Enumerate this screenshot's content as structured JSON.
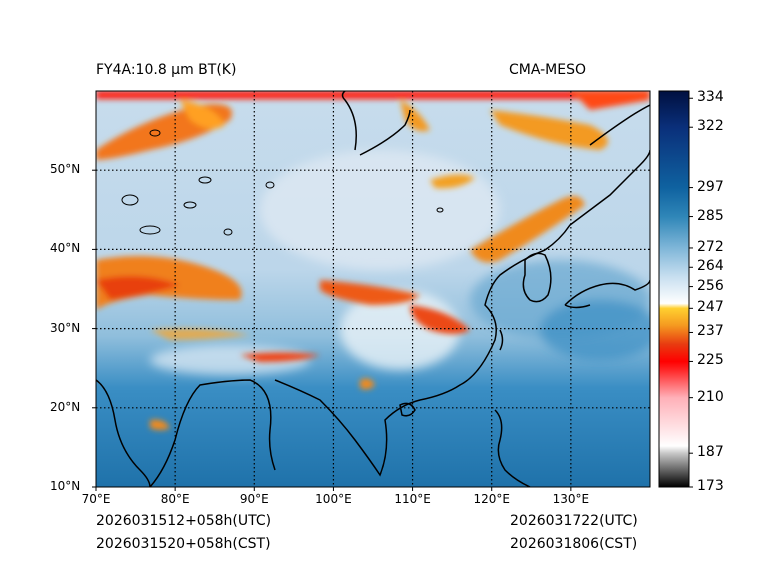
{
  "header": {
    "title_left": "FY4A:10.8 µm BT(K)",
    "title_right": "CMA-MESO"
  },
  "footer": {
    "init_utc": "2026031512+058h(UTC)",
    "init_cst": "2026031520+058h(CST)",
    "valid_utc": "2026031722(UTC)",
    "valid_cst": "2026031806(CST)"
  },
  "map": {
    "lon_range": [
      70,
      140
    ],
    "lat_range": [
      10,
      60
    ],
    "lon_ticks": [
      {
        "value": 70,
        "label": "70°E"
      },
      {
        "value": 80,
        "label": "80°E"
      },
      {
        "value": 90,
        "label": "90°E"
      },
      {
        "value": 100,
        "label": "100°E"
      },
      {
        "value": 110,
        "label": "110°E"
      },
      {
        "value": 120,
        "label": "120°E"
      },
      {
        "value": 130,
        "label": "130°E"
      }
    ],
    "lat_ticks": [
      {
        "value": 10,
        "label": "10°N"
      },
      {
        "value": 20,
        "label": "20°N"
      },
      {
        "value": 30,
        "label": "30°N"
      },
      {
        "value": 40,
        "label": "40°N"
      },
      {
        "value": 50,
        "label": "50°N"
      }
    ],
    "cold_cloud_color": "#e8401c",
    "warm_surface_color": "#1a6aa4"
  },
  "colorbar": {
    "range": [
      173,
      337
    ],
    "ticks": [
      {
        "value": 173,
        "label": "173"
      },
      {
        "value": 187,
        "label": "187"
      },
      {
        "value": 210,
        "label": "210"
      },
      {
        "value": 225,
        "label": "225"
      },
      {
        "value": 237,
        "label": "237"
      },
      {
        "value": 247,
        "label": "247"
      },
      {
        "value": 256,
        "label": "256"
      },
      {
        "value": 264,
        "label": "264"
      },
      {
        "value": 272,
        "label": "272"
      },
      {
        "value": 285,
        "label": "285"
      },
      {
        "value": 297,
        "label": "297"
      },
      {
        "value": 322,
        "label": "322"
      },
      {
        "value": 334,
        "label": "334"
      }
    ],
    "stops": [
      {
        "value": 173,
        "color": "#000000"
      },
      {
        "value": 187,
        "color": "#c8c8c8"
      },
      {
        "value": 190,
        "color": "#ffffff"
      },
      {
        "value": 210,
        "color": "#ffb0b8"
      },
      {
        "value": 222,
        "color": "#ff2020"
      },
      {
        "value": 225,
        "color": "#ff0000"
      },
      {
        "value": 232,
        "color": "#e83a10"
      },
      {
        "value": 240,
        "color": "#f59a20"
      },
      {
        "value": 247,
        "color": "#ffd030"
      },
      {
        "value": 249,
        "color": "#ffffff"
      },
      {
        "value": 260,
        "color": "#c8dff0"
      },
      {
        "value": 272,
        "color": "#7fb6d8"
      },
      {
        "value": 285,
        "color": "#2f86b8"
      },
      {
        "value": 297,
        "color": "#0f62a0"
      },
      {
        "value": 322,
        "color": "#0a2f7a"
      },
      {
        "value": 337,
        "color": "#001040"
      }
    ]
  }
}
